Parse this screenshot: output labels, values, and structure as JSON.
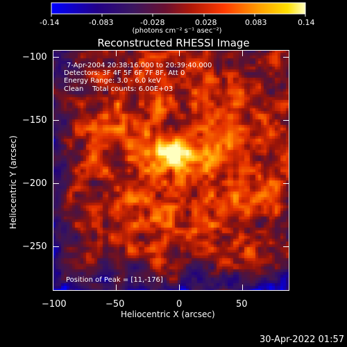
{
  "colorbar": {
    "ticks": [
      "-0.14",
      "-0.083",
      "-0.028",
      "0.028",
      "0.083",
      "0.14"
    ],
    "units": "(photons cm⁻² s⁻¹ asec⁻²)"
  },
  "plot": {
    "title": "Reconstructed RHESSI Image",
    "info_lines": [
      "7-Apr-2004 20:38:16.000 to 20:39:40.000",
      "Detectors: 3F 4F 5F 6F 7F 8F, Att 0",
      "Energy Range: 3.0 - 6.0 keV",
      "Clean    Total counts: 6.00E+03"
    ],
    "peak_label": "Position of Peak = [11,-176]",
    "xlabel": "Heliocentric X (arcsec)",
    "ylabel": "Heliocentric Y (arcsec)",
    "xticks": [
      "−100",
      "−50",
      "0",
      "50"
    ],
    "yticks": [
      "−100",
      "−150",
      "−200",
      "−250"
    ]
  },
  "footer": {
    "timestamp": "30-Apr-2022 01:57"
  },
  "colors": {
    "background": "#000000",
    "colormap": [
      "#0000ff",
      "#1a0078",
      "#3f1450",
      "#7a1020",
      "#c82000",
      "#ff6a00",
      "#ffc000",
      "#ffffb0"
    ]
  }
}
